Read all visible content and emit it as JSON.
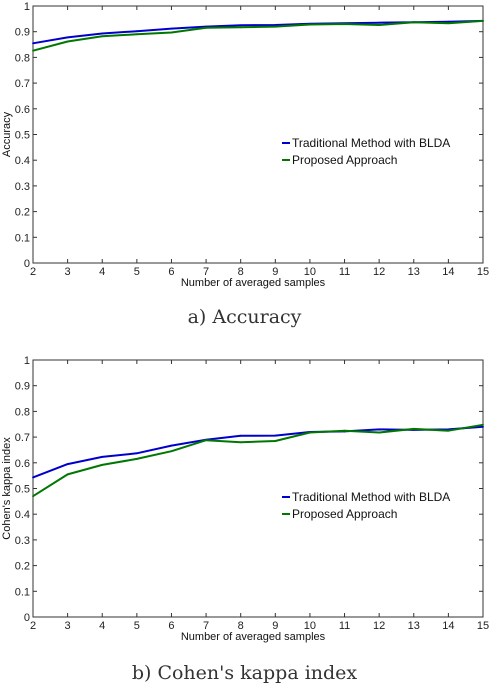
{
  "chart_data": [
    {
      "type": "line",
      "caption": "a) Accuracy",
      "xlabel": "Number of averaged samples",
      "ylabel": "Accuracy",
      "x": [
        2,
        3,
        4,
        5,
        6,
        7,
        8,
        9,
        10,
        11,
        12,
        13,
        14,
        15
      ],
      "xlim": [
        2,
        15
      ],
      "ylim": [
        0,
        1
      ],
      "yticks": [
        "0",
        "0.1",
        "0.2",
        "0.3",
        "0.4",
        "0.5",
        "0.6",
        "0.7",
        "0.8",
        "0.9",
        "1"
      ],
      "xticks": [
        "2",
        "3",
        "4",
        "5",
        "6",
        "7",
        "8",
        "9",
        "10",
        "11",
        "12",
        "13",
        "14",
        "15"
      ],
      "grid": false,
      "legend_position": "middle-right",
      "series": [
        {
          "name": "Traditional Method with BLDA",
          "color": "#0000cc",
          "values": [
            0.855,
            0.878,
            0.893,
            0.902,
            0.912,
            0.92,
            0.925,
            0.926,
            0.931,
            0.933,
            0.935,
            0.937,
            0.939,
            0.942
          ]
        },
        {
          "name": "Proposed Approach",
          "color": "#007700",
          "values": [
            0.826,
            0.862,
            0.882,
            0.89,
            0.897,
            0.915,
            0.917,
            0.92,
            0.928,
            0.93,
            0.926,
            0.937,
            0.933,
            0.942
          ]
        }
      ]
    },
    {
      "type": "line",
      "caption": "b) Cohen's kappa index",
      "xlabel": "Number of averaged samples",
      "ylabel": "Cohen's kappa index",
      "x": [
        2,
        3,
        4,
        5,
        6,
        7,
        8,
        9,
        10,
        11,
        12,
        13,
        14,
        15
      ],
      "xlim": [
        2,
        15
      ],
      "ylim": [
        0,
        1
      ],
      "yticks": [
        "0",
        "0.1",
        "0.2",
        "0.3",
        "0.4",
        "0.5",
        "0.6",
        "0.7",
        "0.8",
        "0.9",
        "1"
      ],
      "xticks": [
        "2",
        "3",
        "4",
        "5",
        "6",
        "7",
        "8",
        "9",
        "10",
        "11",
        "12",
        "13",
        "14",
        "15"
      ],
      "grid": false,
      "legend_position": "middle-right",
      "series": [
        {
          "name": "Traditional Method with BLDA",
          "color": "#0000cc",
          "values": [
            0.543,
            0.595,
            0.623,
            0.637,
            0.667,
            0.69,
            0.705,
            0.706,
            0.72,
            0.722,
            0.73,
            0.728,
            0.73,
            0.74
          ]
        },
        {
          "name": "Proposed Approach",
          "color": "#007700",
          "values": [
            0.47,
            0.555,
            0.592,
            0.615,
            0.645,
            0.688,
            0.68,
            0.685,
            0.718,
            0.725,
            0.718,
            0.732,
            0.725,
            0.748
          ]
        }
      ]
    }
  ]
}
